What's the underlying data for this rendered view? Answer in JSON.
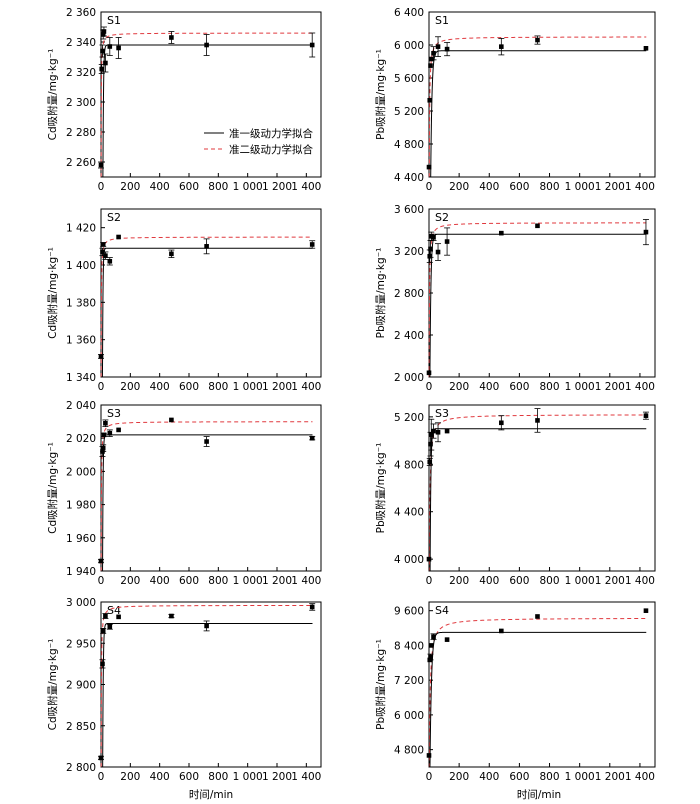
{
  "figure": {
    "xlabel": "时间/min",
    "legend": {
      "first_order": "准一级动力学拟合",
      "second_order": "准二级动力学拟合"
    }
  },
  "colors": {
    "first_order_line": "#000000",
    "second_order_line": "#e0393e",
    "data_points": "#000000"
  },
  "chart_data": [
    {
      "type": "scatter",
      "label": "S1",
      "ylabel": "Cd吸附量/mg·kg⁻¹",
      "xlim": [
        0,
        1500
      ],
      "ylim": [
        2250,
        2360
      ],
      "xticks": [
        0,
        200,
        400,
        600,
        800,
        1000,
        1200,
        1400
      ],
      "xtick_labels": [
        "0",
        "200",
        "400",
        "600",
        "800",
        "1 000",
        "1 200",
        "1 400"
      ],
      "yticks": [
        2260,
        2280,
        2300,
        2320,
        2340,
        2360
      ],
      "ytick_labels": [
        "2 260",
        "2 280",
        "2 300",
        "2 320",
        "2 340",
        "2 360"
      ],
      "legend": true,
      "points": [
        {
          "x": 0,
          "y": 2258,
          "err": 2
        },
        {
          "x": 5,
          "y": 2322,
          "err": 3
        },
        {
          "x": 10,
          "y": 2334,
          "err": 4
        },
        {
          "x": 15,
          "y": 2345,
          "err": 3
        },
        {
          "x": 20,
          "y": 2347,
          "err": 3
        },
        {
          "x": 30,
          "y": 2326,
          "err": 6
        },
        {
          "x": 60,
          "y": 2337,
          "err": 6
        },
        {
          "x": 120,
          "y": 2336,
          "err": 7
        },
        {
          "x": 480,
          "y": 2343,
          "err": 4
        },
        {
          "x": 720,
          "y": 2338,
          "err": 7
        },
        {
          "x": 1440,
          "y": 2338,
          "err": 8
        }
      ],
      "fit_first_order": {
        "qe": 2338,
        "k": 0.25
      },
      "fit_second_order": {
        "qe": 2346,
        "h": 50000
      }
    },
    {
      "type": "scatter",
      "label": "S1",
      "ylabel": "Pb吸附量/mg·kg⁻¹",
      "xlim": [
        0,
        1500
      ],
      "ylim": [
        4400,
        6400
      ],
      "xticks": [
        0,
        200,
        400,
        600,
        800,
        1000,
        1200,
        1400
      ],
      "xtick_labels": [
        "0",
        "200",
        "400",
        "600",
        "800",
        "1 000",
        "1 200",
        "1 400"
      ],
      "yticks": [
        4400,
        4800,
        5200,
        5600,
        6000,
        6400
      ],
      "ytick_labels": [
        "4 400",
        "4 800",
        "5 200",
        "5 600",
        "6 000",
        "6 400"
      ],
      "legend": false,
      "points": [
        {
          "x": 0,
          "y": 4520,
          "err": 0
        },
        {
          "x": 5,
          "y": 5330,
          "err": 0
        },
        {
          "x": 10,
          "y": 5750,
          "err": 0
        },
        {
          "x": 15,
          "y": 5830,
          "err": 0
        },
        {
          "x": 30,
          "y": 5900,
          "err": 80
        },
        {
          "x": 60,
          "y": 5980,
          "err": 120
        },
        {
          "x": 120,
          "y": 5950,
          "err": 80
        },
        {
          "x": 480,
          "y": 5980,
          "err": 100
        },
        {
          "x": 720,
          "y": 6060,
          "err": 50
        },
        {
          "x": 1440,
          "y": 5960,
          "err": 0
        }
      ],
      "fit_first_order": {
        "qe": 5930,
        "k": 0.12
      },
      "fit_second_order": {
        "qe": 6100,
        "h": 8000
      }
    },
    {
      "type": "scatter",
      "label": "S2",
      "ylabel": "Cd吸附量/mg·kg⁻¹",
      "xlim": [
        0,
        1500
      ],
      "ylim": [
        1340,
        1430
      ],
      "xticks": [
        0,
        200,
        400,
        600,
        800,
        1000,
        1200,
        1400
      ],
      "xtick_labels": [
        "0",
        "200",
        "400",
        "600",
        "800",
        "1 000",
        "1 200",
        "1 400"
      ],
      "yticks": [
        1340,
        1360,
        1380,
        1400,
        1420
      ],
      "ytick_labels": [
        "1 340",
        "1 360",
        "1 380",
        "1 400",
        "1 420"
      ],
      "legend": false,
      "points": [
        {
          "x": 0,
          "y": 1351,
          "err": 1
        },
        {
          "x": 10,
          "y": 1407,
          "err": 2
        },
        {
          "x": 15,
          "y": 1411,
          "err": 1
        },
        {
          "x": 30,
          "y": 1405,
          "err": 2
        },
        {
          "x": 60,
          "y": 1402,
          "err": 2
        },
        {
          "x": 120,
          "y": 1415,
          "err": 0
        },
        {
          "x": 480,
          "y": 1406,
          "err": 2
        },
        {
          "x": 720,
          "y": 1410,
          "err": 4
        },
        {
          "x": 1440,
          "y": 1411,
          "err": 2
        }
      ],
      "fit_first_order": {
        "qe": 1409,
        "k": 0.3
      },
      "fit_second_order": {
        "qe": 1415,
        "h": 20000
      }
    },
    {
      "type": "scatter",
      "label": "S2",
      "ylabel": "Pb吸附量/mg·kg⁻¹",
      "xlim": [
        0,
        1500
      ],
      "ylim": [
        2000,
        3600
      ],
      "xticks": [
        0,
        200,
        400,
        600,
        800,
        1000,
        1200,
        1400
      ],
      "xtick_labels": [
        "0",
        "200",
        "400",
        "600",
        "800",
        "1 000",
        "1 200",
        "1 400"
      ],
      "yticks": [
        2000,
        2400,
        2800,
        3200,
        3600
      ],
      "ytick_labels": [
        "2 000",
        "2 400",
        "2 800",
        "3 200",
        "3 600"
      ],
      "legend": false,
      "points": [
        {
          "x": 0,
          "y": 2040,
          "err": 0
        },
        {
          "x": 5,
          "y": 3150,
          "err": 60
        },
        {
          "x": 10,
          "y": 3220,
          "err": 80
        },
        {
          "x": 15,
          "y": 3340,
          "err": 40
        },
        {
          "x": 30,
          "y": 3330,
          "err": 30
        },
        {
          "x": 60,
          "y": 3190,
          "err": 80
        },
        {
          "x": 120,
          "y": 3290,
          "err": 130
        },
        {
          "x": 480,
          "y": 3370,
          "err": 0
        },
        {
          "x": 720,
          "y": 3440,
          "err": 0
        },
        {
          "x": 1440,
          "y": 3380,
          "err": 120
        }
      ],
      "fit_first_order": {
        "qe": 3360,
        "k": 0.15
      },
      "fit_second_order": {
        "qe": 3470,
        "h": 4000
      }
    },
    {
      "type": "scatter",
      "label": "S3",
      "ylabel": "Cd吸附量/mg·kg⁻¹",
      "xlim": [
        0,
        1500
      ],
      "ylim": [
        1940,
        2040
      ],
      "xticks": [
        0,
        200,
        400,
        600,
        800,
        1000,
        1200,
        1400
      ],
      "xtick_labels": [
        "0",
        "200",
        "400",
        "600",
        "800",
        "1 000",
        "1 200",
        "1 400"
      ],
      "yticks": [
        1940,
        1960,
        1980,
        2000,
        2020,
        2040
      ],
      "ytick_labels": [
        "1 940",
        "1 960",
        "1 980",
        "2 000",
        "2 020",
        "2 040"
      ],
      "legend": false,
      "points": [
        {
          "x": 0,
          "y": 1946,
          "err": 1
        },
        {
          "x": 10,
          "y": 2012,
          "err": 3
        },
        {
          "x": 15,
          "y": 2014,
          "err": 2
        },
        {
          "x": 20,
          "y": 2022,
          "err": 1
        },
        {
          "x": 30,
          "y": 2029,
          "err": 2
        },
        {
          "x": 60,
          "y": 2023,
          "err": 2
        },
        {
          "x": 120,
          "y": 2025,
          "err": 0
        },
        {
          "x": 480,
          "y": 2031,
          "err": 0
        },
        {
          "x": 720,
          "y": 2018,
          "err": 3
        },
        {
          "x": 1440,
          "y": 2020,
          "err": 1
        }
      ],
      "fit_first_order": {
        "qe": 2022,
        "k": 0.3
      },
      "fit_second_order": {
        "qe": 2030,
        "h": 30000
      }
    },
    {
      "type": "scatter",
      "label": "S3",
      "ylabel": "Pb吸附量/mg·kg⁻¹",
      "xlim": [
        0,
        1500
      ],
      "ylim": [
        3900,
        5300
      ],
      "xticks": [
        0,
        200,
        400,
        600,
        800,
        1000,
        1200,
        1400
      ],
      "xtick_labels": [
        "0",
        "200",
        "400",
        "600",
        "800",
        "1 000",
        "1 200",
        "1 400"
      ],
      "yticks": [
        4000,
        4400,
        4800,
        5200
      ],
      "ytick_labels": [
        "4 000",
        "4 400",
        "4 800",
        "5 200"
      ],
      "legend": false,
      "points": [
        {
          "x": 0,
          "y": 4000,
          "err": 0
        },
        {
          "x": 5,
          "y": 4820,
          "err": 30
        },
        {
          "x": 10,
          "y": 4970,
          "err": 100
        },
        {
          "x": 15,
          "y": 5050,
          "err": 130
        },
        {
          "x": 30,
          "y": 5080,
          "err": 60
        },
        {
          "x": 60,
          "y": 5070,
          "err": 80
        },
        {
          "x": 120,
          "y": 5080,
          "err": 0
        },
        {
          "x": 480,
          "y": 5150,
          "err": 60
        },
        {
          "x": 720,
          "y": 5170,
          "err": 100
        },
        {
          "x": 1440,
          "y": 5210,
          "err": 30
        }
      ],
      "fit_first_order": {
        "qe": 5100,
        "k": 0.2
      },
      "fit_second_order": {
        "qe": 5220,
        "h": 5000
      }
    },
    {
      "type": "scatter",
      "label": "S4",
      "ylabel": "Cd吸附量/mg·kg⁻¹",
      "xlim": [
        0,
        1500
      ],
      "ylim": [
        2800,
        3000
      ],
      "xticks": [
        0,
        200,
        400,
        600,
        800,
        1000,
        1200,
        1400
      ],
      "xtick_labels": [
        "0",
        "200",
        "400",
        "600",
        "800",
        "1 000",
        "1 200",
        "1 400"
      ],
      "yticks": [
        2800,
        2850,
        2900,
        2950,
        3000
      ],
      "ytick_labels": [
        "2 800",
        "2 850",
        "2 900",
        "2 950",
        "3 000"
      ],
      "legend": false,
      "points": [
        {
          "x": 0,
          "y": 2811,
          "err": 2
        },
        {
          "x": 10,
          "y": 2925,
          "err": 5
        },
        {
          "x": 15,
          "y": 2965,
          "err": 3
        },
        {
          "x": 30,
          "y": 2983,
          "err": 3
        },
        {
          "x": 60,
          "y": 2970,
          "err": 3
        },
        {
          "x": 120,
          "y": 2982,
          "err": 0
        },
        {
          "x": 480,
          "y": 2983,
          "err": 2
        },
        {
          "x": 720,
          "y": 2971,
          "err": 6
        },
        {
          "x": 1440,
          "y": 2994,
          "err": 4
        }
      ],
      "fit_first_order": {
        "qe": 2974,
        "k": 0.25
      },
      "fit_second_order": {
        "qe": 2996,
        "h": 30000
      }
    },
    {
      "type": "scatter",
      "label": "S4",
      "ylabel": "Pb吸附量/mg·kg⁻¹",
      "xlim": [
        0,
        1500
      ],
      "ylim": [
        4200,
        9900
      ],
      "xticks": [
        0,
        200,
        400,
        600,
        800,
        1000,
        1200,
        1400
      ],
      "xtick_labels": [
        "0",
        "200",
        "400",
        "600",
        "800",
        "1 000",
        "1 200",
        "1 400"
      ],
      "yticks": [
        4800,
        6000,
        7200,
        8400,
        9600
      ],
      "ytick_labels": [
        "4 800",
        "6 000",
        "7 200",
        "8 400",
        "9 600"
      ],
      "legend": false,
      "points": [
        {
          "x": 0,
          "y": 4600,
          "err": 0
        },
        {
          "x": 5,
          "y": 7900,
          "err": 0
        },
        {
          "x": 10,
          "y": 8000,
          "err": 100
        },
        {
          "x": 15,
          "y": 8400,
          "err": 0
        },
        {
          "x": 30,
          "y": 8700,
          "err": 100
        },
        {
          "x": 120,
          "y": 8600,
          "err": 0
        },
        {
          "x": 480,
          "y": 8900,
          "err": 0
        },
        {
          "x": 720,
          "y": 9400,
          "err": 0
        },
        {
          "x": 1440,
          "y": 9600,
          "err": 0
        }
      ],
      "fit_first_order": {
        "qe": 8850,
        "k": 0.1
      },
      "fit_second_order": {
        "qe": 9350,
        "h": 3000
      }
    }
  ]
}
